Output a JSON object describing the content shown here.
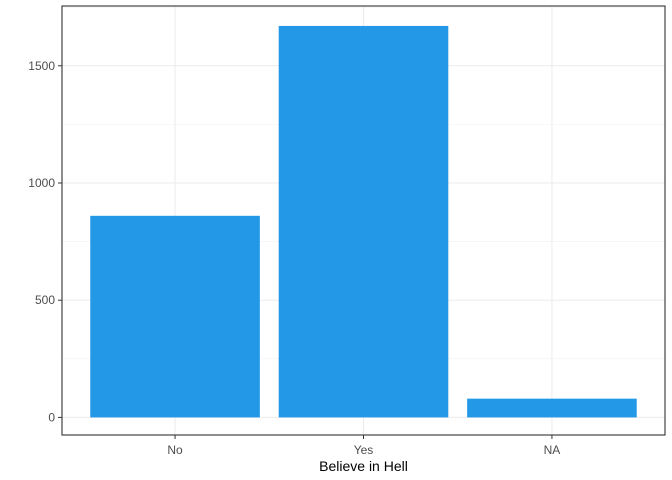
{
  "chart_data": {
    "type": "bar",
    "title": "",
    "xlabel": "Believe in Hell",
    "ylabel": "",
    "categories": [
      "No",
      "Yes",
      "NA"
    ],
    "values": [
      860,
      1670,
      80
    ],
    "ylim": [
      -75,
      1755
    ],
    "yticks": [
      0,
      500,
      1000,
      1500
    ],
    "ytick_labels": [
      "0",
      "500",
      "1000",
      "1500"
    ],
    "grid": true,
    "legend": "none",
    "bar_color": "#2398e6",
    "grid_major_color": "#ebebeb",
    "grid_minor_color": "#f2f2f2",
    "border_color": "#333333"
  }
}
